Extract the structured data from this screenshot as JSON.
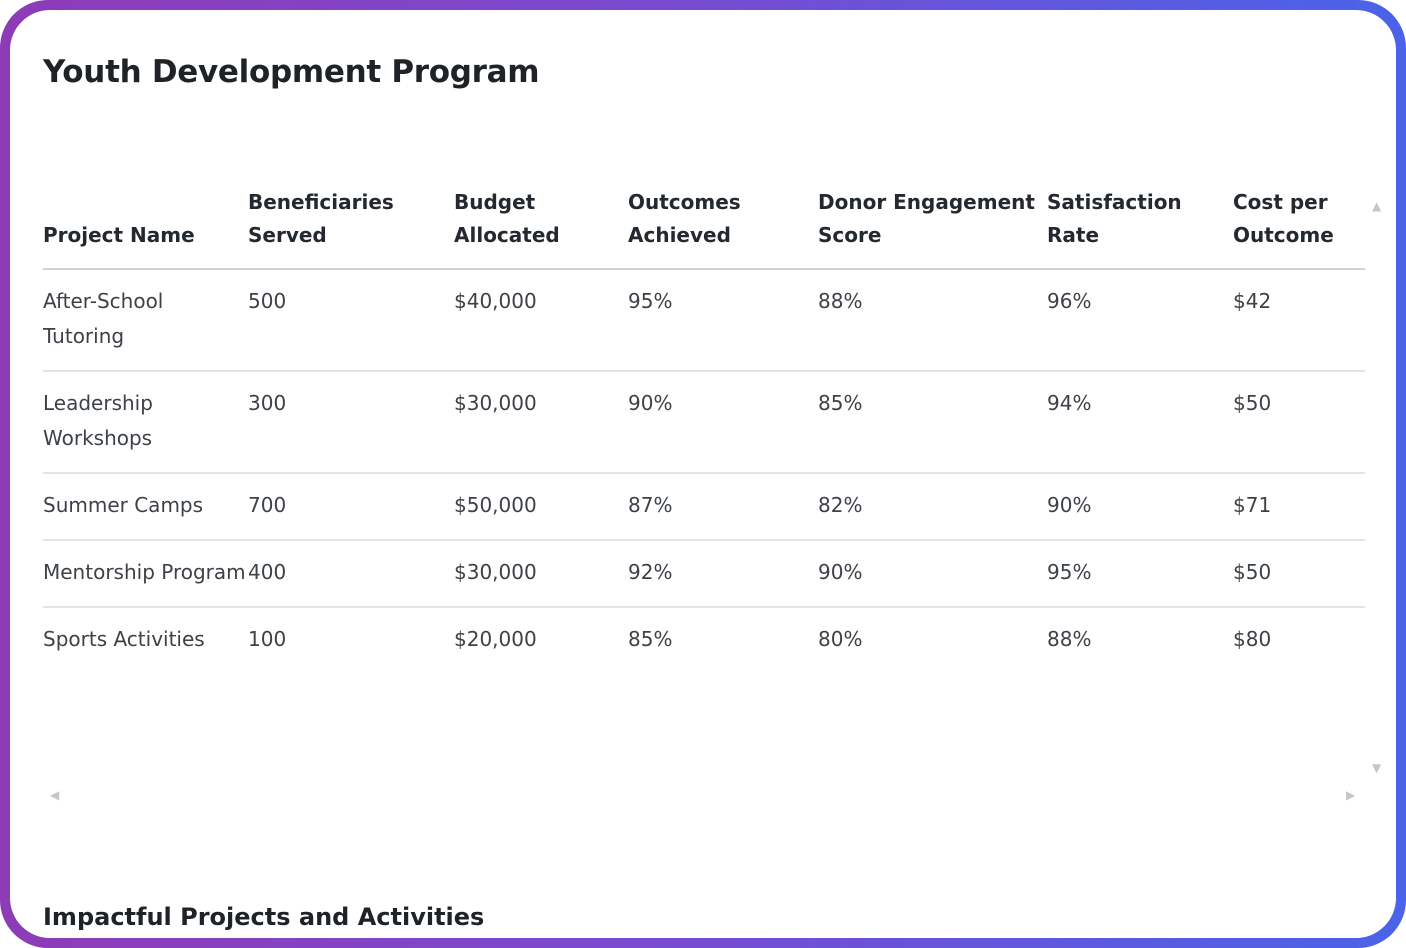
{
  "page": {
    "title": "Youth Development Program",
    "section_title": "Impactful Projects and Activities"
  },
  "table": {
    "headers": [
      "Project Name",
      "Beneficiaries Served",
      "Budget Allocated",
      "Outcomes Achieved",
      "Donor Engagement Score",
      "Satisfaction Rate",
      "Cost per Outcome"
    ],
    "rows": [
      [
        "After-School Tutoring",
        "500",
        "$40,000",
        "95%",
        "88%",
        "96%",
        "$42"
      ],
      [
        "Leadership Workshops",
        "300",
        "$30,000",
        "90%",
        "85%",
        "94%",
        "$50"
      ],
      [
        "Summer Camps",
        "700",
        "$50,000",
        "87%",
        "82%",
        "90%",
        "$71"
      ],
      [
        "Mentorship Program",
        "400",
        "$30,000",
        "92%",
        "90%",
        "95%",
        "$50"
      ],
      [
        "Sports Activities",
        "100",
        "$20,000",
        "85%",
        "80%",
        "88%",
        "$80"
      ]
    ]
  },
  "icons": {
    "scroll_up": "scroll-up-arrow-icon",
    "scroll_down": "scroll-down-arrow-icon",
    "scroll_left": "scroll-left-arrow-icon",
    "scroll_right": "scroll-right-arrow-icon"
  },
  "colors": {
    "frame_start": "#8e3bb6",
    "frame_end": "#4a63e8",
    "text": "#1f2328"
  }
}
